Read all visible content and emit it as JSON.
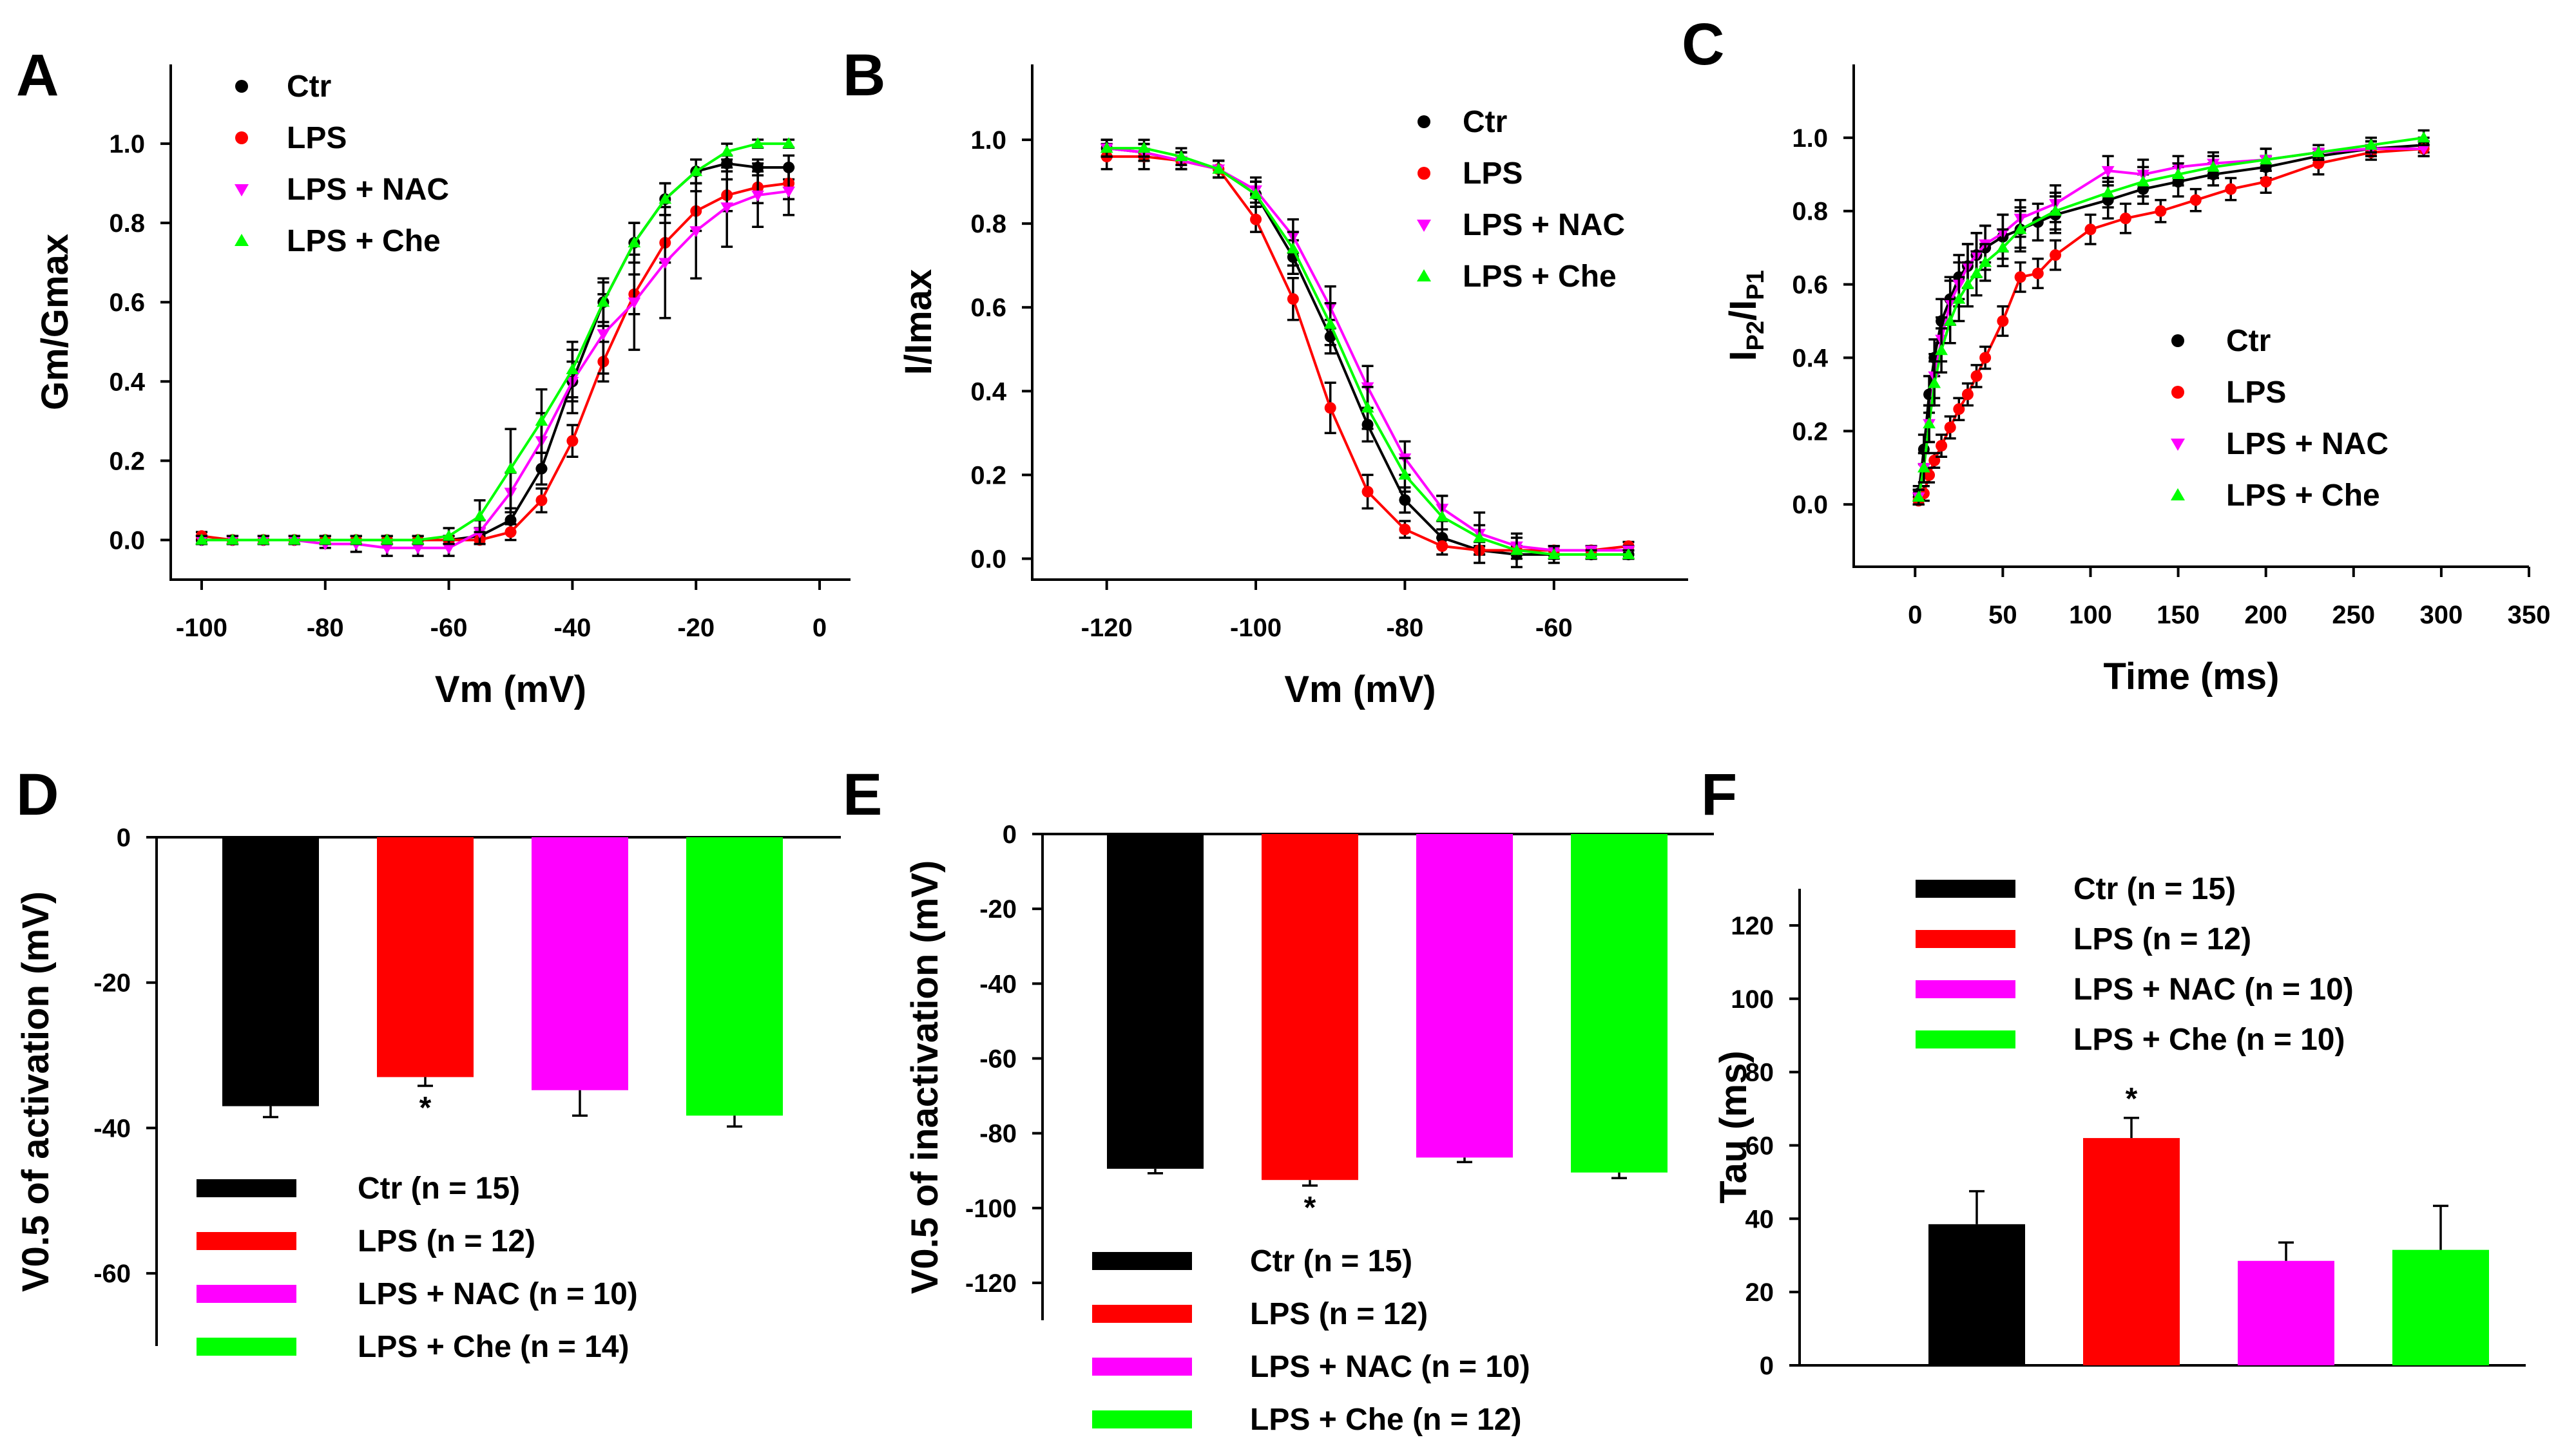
{
  "chart_data": [
    {
      "panel": "A",
      "type": "line",
      "xlabel": "Vm (mV)",
      "ylabel": "Gm/Gmax",
      "xlim": [
        -105,
        5
      ],
      "ylim": [
        -0.1,
        1.2
      ],
      "xticks": [
        -100,
        -80,
        -60,
        -40,
        -20,
        0
      ],
      "yticks": [
        0.0,
        0.2,
        0.4,
        0.6,
        0.8,
        1.0
      ],
      "xtick_labels": [
        "-100",
        "-80",
        "-60",
        "-40",
        "-20",
        "0"
      ],
      "ytick_labels": [
        "0.0",
        "0.2",
        "0.4",
        "0.6",
        "0.8",
        "1.0"
      ],
      "legend_position": "top-left",
      "x": [
        -100,
        -95,
        -90,
        -85,
        -80,
        -75,
        -70,
        -65,
        -60,
        -55,
        -50,
        -45,
        -40,
        -35,
        -30,
        -25,
        -20,
        -15,
        -10,
        -5
      ],
      "series": [
        {
          "name": "Ctr",
          "color": "#000000",
          "marker": "circle",
          "values": [
            0.0,
            0.0,
            0.0,
            0.0,
            0.0,
            0.0,
            0.0,
            0.0,
            0.0,
            0.01,
            0.05,
            0.18,
            0.4,
            0.6,
            0.75,
            0.86,
            0.93,
            0.95,
            0.94,
            0.94
          ],
          "err": [
            0.01,
            0.01,
            0.01,
            0.01,
            0.01,
            0.01,
            0.01,
            0.01,
            0.01,
            0.02,
            0.03,
            0.04,
            0.05,
            0.05,
            0.05,
            0.04,
            0.03,
            0.02,
            0.02,
            0.03
          ]
        },
        {
          "name": "LPS",
          "color": "#ff0000",
          "marker": "circle",
          "values": [
            0.01,
            0.0,
            0.0,
            0.0,
            0.0,
            0.0,
            0.0,
            0.0,
            0.0,
            0.0,
            0.02,
            0.1,
            0.25,
            0.45,
            0.62,
            0.75,
            0.83,
            0.87,
            0.89,
            0.9
          ],
          "err": [
            0.01,
            0.01,
            0.01,
            0.01,
            0.01,
            0.01,
            0.01,
            0.01,
            0.01,
            0.01,
            0.02,
            0.03,
            0.04,
            0.05,
            0.05,
            0.05,
            0.05,
            0.04,
            0.04,
            0.04
          ]
        },
        {
          "name": "LPS + NAC",
          "color": "#ff00ff",
          "marker": "triangle-down",
          "values": [
            0.0,
            0.0,
            0.0,
            0.0,
            -0.01,
            -0.01,
            -0.02,
            -0.02,
            -0.02,
            0.02,
            0.12,
            0.25,
            0.4,
            0.52,
            0.6,
            0.7,
            0.78,
            0.84,
            0.87,
            0.88
          ],
          "err": [
            0.01,
            0.01,
            0.01,
            0.01,
            0.01,
            0.02,
            0.02,
            0.02,
            0.02,
            0.03,
            0.05,
            0.07,
            0.08,
            0.1,
            0.12,
            0.14,
            0.12,
            0.1,
            0.08,
            0.06
          ]
        },
        {
          "name": "LPS + Che",
          "color": "#00ff00",
          "marker": "triangle-up",
          "values": [
            0.0,
            0.0,
            0.0,
            0.0,
            0.0,
            0.0,
            0.0,
            0.0,
            0.01,
            0.06,
            0.18,
            0.3,
            0.43,
            0.6,
            0.75,
            0.86,
            0.93,
            0.98,
            1.0,
            1.0
          ],
          "err": [
            0.01,
            0.01,
            0.01,
            0.01,
            0.01,
            0.01,
            0.01,
            0.01,
            0.02,
            0.04,
            0.1,
            0.08,
            0.07,
            0.06,
            0.05,
            0.04,
            0.03,
            0.02,
            0.01,
            0.01
          ]
        }
      ]
    },
    {
      "panel": "B",
      "type": "line",
      "xlabel": "Vm (mV)",
      "ylabel": "I/Imax",
      "xlim": [
        -130,
        -42
      ],
      "ylim": [
        -0.05,
        1.18
      ],
      "xticks": [
        -120,
        -100,
        -80,
        -60
      ],
      "yticks": [
        0.0,
        0.2,
        0.4,
        0.6,
        0.8,
        1.0
      ],
      "xtick_labels": [
        "-120",
        "-100",
        "-80",
        "-60"
      ],
      "ytick_labels": [
        "0.0",
        "0.2",
        "0.4",
        "0.6",
        "0.8",
        "1.0"
      ],
      "legend_position": "top-right",
      "x": [
        -120,
        -115,
        -110,
        -105,
        -100,
        -95,
        -90,
        -85,
        -80,
        -75,
        -70,
        -65,
        -60,
        -55,
        -50
      ],
      "series": [
        {
          "name": "Ctr",
          "color": "#000000",
          "marker": "circle",
          "values": [
            0.98,
            0.97,
            0.95,
            0.93,
            0.87,
            0.72,
            0.53,
            0.32,
            0.14,
            0.05,
            0.02,
            0.01,
            0.01,
            0.01,
            0.01
          ],
          "err": [
            0.02,
            0.02,
            0.02,
            0.02,
            0.03,
            0.04,
            0.04,
            0.04,
            0.03,
            0.02,
            0.01,
            0.01,
            0.01,
            0.01,
            0.01
          ]
        },
        {
          "name": "LPS",
          "color": "#ff0000",
          "marker": "circle",
          "values": [
            0.96,
            0.96,
            0.95,
            0.93,
            0.81,
            0.62,
            0.36,
            0.16,
            0.07,
            0.03,
            0.02,
            0.02,
            0.02,
            0.02,
            0.03
          ],
          "err": [
            0.03,
            0.03,
            0.02,
            0.02,
            0.03,
            0.05,
            0.06,
            0.04,
            0.02,
            0.02,
            0.01,
            0.01,
            0.01,
            0.01,
            0.01
          ]
        },
        {
          "name": "LPS + NAC",
          "color": "#ff00ff",
          "marker": "triangle-down",
          "values": [
            0.98,
            0.97,
            0.95,
            0.93,
            0.88,
            0.77,
            0.6,
            0.41,
            0.24,
            0.12,
            0.06,
            0.03,
            0.02,
            0.02,
            0.02
          ],
          "err": [
            0.02,
            0.02,
            0.02,
            0.02,
            0.03,
            0.04,
            0.05,
            0.05,
            0.04,
            0.03,
            0.02,
            0.02,
            0.01,
            0.01,
            0.01
          ]
        },
        {
          "name": "LPS + Che",
          "color": "#00ff00",
          "marker": "triangle-up",
          "values": [
            0.98,
            0.98,
            0.96,
            0.93,
            0.87,
            0.74,
            0.56,
            0.36,
            0.2,
            0.1,
            0.05,
            0.02,
            0.01,
            0.01,
            0.01
          ],
          "err": [
            0.02,
            0.02,
            0.02,
            0.02,
            0.03,
            0.04,
            0.05,
            0.05,
            0.04,
            0.05,
            0.06,
            0.04,
            0.02,
            0.01,
            0.01
          ]
        }
      ]
    },
    {
      "panel": "C",
      "type": "line",
      "xlabel": "Time (ms)",
      "ylabel": "IP2/IP1",
      "ylabel_parts": {
        "main": "I",
        "sub1": "P2",
        "slash": "/I",
        "sub2": "P1"
      },
      "xlim": [
        -35,
        350
      ],
      "ylim": [
        -0.17,
        1.2
      ],
      "xticks": [
        0,
        50,
        100,
        150,
        200,
        250,
        300,
        350
      ],
      "yticks": [
        0.0,
        0.2,
        0.4,
        0.6,
        0.8,
        1.0
      ],
      "xtick_labels": [
        "0",
        "50",
        "100",
        "150",
        "200",
        "250",
        "300",
        "350"
      ],
      "ytick_labels": [
        "0.0",
        "0.2",
        "0.4",
        "0.6",
        "0.8",
        "1.0"
      ],
      "legend_position": "center-right",
      "series": [
        {
          "name": "Ctr",
          "color": "#000000",
          "marker": "circle",
          "x": [
            2,
            5,
            8,
            11,
            15,
            20,
            25,
            30,
            35,
            40,
            50,
            60,
            70,
            80,
            110,
            130,
            150,
            170,
            200,
            230,
            260,
            290
          ],
          "values": [
            0.03,
            0.15,
            0.3,
            0.4,
            0.5,
            0.56,
            0.62,
            0.65,
            0.68,
            0.7,
            0.73,
            0.75,
            0.77,
            0.79,
            0.83,
            0.86,
            0.88,
            0.9,
            0.92,
            0.95,
            0.97,
            0.98
          ],
          "err": [
            0.02,
            0.04,
            0.05,
            0.05,
            0.06,
            0.06,
            0.06,
            0.06,
            0.06,
            0.06,
            0.06,
            0.06,
            0.05,
            0.05,
            0.05,
            0.04,
            0.04,
            0.03,
            0.03,
            0.02,
            0.02,
            0.02
          ]
        },
        {
          "name": "LPS",
          "color": "#ff0000",
          "marker": "circle",
          "x": [
            2,
            5,
            8,
            11,
            15,
            20,
            25,
            30,
            35,
            40,
            50,
            60,
            70,
            80,
            100,
            120,
            140,
            160,
            180,
            200,
            230,
            260,
            290
          ],
          "values": [
            0.01,
            0.03,
            0.08,
            0.12,
            0.16,
            0.21,
            0.26,
            0.3,
            0.35,
            0.4,
            0.5,
            0.62,
            0.63,
            0.68,
            0.75,
            0.78,
            0.8,
            0.83,
            0.86,
            0.88,
            0.93,
            0.96,
            0.97
          ],
          "err": [
            0.01,
            0.02,
            0.02,
            0.02,
            0.03,
            0.03,
            0.03,
            0.03,
            0.03,
            0.03,
            0.04,
            0.04,
            0.04,
            0.04,
            0.04,
            0.04,
            0.03,
            0.03,
            0.03,
            0.03,
            0.03,
            0.02,
            0.02
          ]
        },
        {
          "name": "LPS + NAC",
          "color": "#ff00ff",
          "marker": "triangle-down",
          "x": [
            2,
            5,
            8,
            11,
            15,
            20,
            25,
            30,
            35,
            40,
            50,
            60,
            80,
            110,
            130,
            150,
            170,
            200,
            230,
            260,
            290
          ],
          "values": [
            0.02,
            0.1,
            0.22,
            0.35,
            0.45,
            0.55,
            0.6,
            0.65,
            0.68,
            0.71,
            0.74,
            0.78,
            0.82,
            0.91,
            0.9,
            0.92,
            0.93,
            0.94,
            0.96,
            0.97,
            0.97
          ],
          "err": [
            0.02,
            0.04,
            0.05,
            0.06,
            0.06,
            0.06,
            0.06,
            0.06,
            0.06,
            0.05,
            0.05,
            0.05,
            0.05,
            0.04,
            0.04,
            0.03,
            0.03,
            0.03,
            0.02,
            0.02,
            0.02
          ]
        },
        {
          "name": "LPS + Che",
          "color": "#00ff00",
          "marker": "triangle-up",
          "x": [
            2,
            5,
            8,
            11,
            15,
            20,
            25,
            30,
            35,
            40,
            50,
            60,
            80,
            110,
            130,
            150,
            170,
            200,
            230,
            260,
            290
          ],
          "values": [
            0.02,
            0.1,
            0.22,
            0.33,
            0.42,
            0.5,
            0.56,
            0.6,
            0.63,
            0.66,
            0.7,
            0.75,
            0.8,
            0.85,
            0.88,
            0.9,
            0.92,
            0.94,
            0.96,
            0.98,
            1.0
          ],
          "err": [
            0.02,
            0.04,
            0.05,
            0.06,
            0.06,
            0.06,
            0.06,
            0.06,
            0.06,
            0.05,
            0.05,
            0.05,
            0.05,
            0.04,
            0.04,
            0.03,
            0.03,
            0.03,
            0.02,
            0.02,
            0.02
          ]
        }
      ]
    },
    {
      "panel": "D",
      "type": "bar",
      "ylabel": "V0.5 of activation (mV)",
      "ylim": [
        -70,
        0
      ],
      "yticks": [
        0,
        -20,
        -40,
        -60
      ],
      "ytick_labels": [
        "0",
        "-20",
        "-40",
        "-60"
      ],
      "categories": [
        "Ctr (n = 15)",
        "LPS (n = 12)",
        "LPS + NAC (n = 10)",
        "LPS + Che (n = 14)"
      ],
      "values": [
        -37,
        -33,
        -34.8,
        -38.3
      ],
      "err": [
        1.5,
        1.2,
        3.5,
        1.5
      ],
      "colors": [
        "#000000",
        "#ff0000",
        "#ff00ff",
        "#00ff00"
      ],
      "significance": [
        "",
        "*",
        "",
        ""
      ],
      "legend_position": "bottom"
    },
    {
      "panel": "E",
      "type": "bar",
      "ylabel": "V0.5 of inactivation (mV)",
      "ylim": [
        -130,
        0
      ],
      "yticks": [
        0,
        -20,
        -40,
        -60,
        -80,
        -100,
        -120
      ],
      "ytick_labels": [
        "0",
        "-20",
        "-40",
        "-60",
        "-80",
        "-100",
        "-120"
      ],
      "categories": [
        "Ctr (n = 15)",
        "LPS (n = 12)",
        "LPS + NAC (n = 10)",
        "LPS + Che (n = 12)"
      ],
      "values": [
        -89.5,
        -92.5,
        -86.5,
        -90.5
      ],
      "err": [
        1.2,
        1.5,
        1.2,
        1.5
      ],
      "colors": [
        "#000000",
        "#ff0000",
        "#ff00ff",
        "#00ff00"
      ],
      "significance": [
        "",
        "*",
        "",
        ""
      ],
      "legend_position": "bottom"
    },
    {
      "panel": "F",
      "type": "bar",
      "ylabel": "Tau (ms)",
      "ylim": [
        0,
        130
      ],
      "yticks": [
        0,
        20,
        40,
        60,
        80,
        100,
        120
      ],
      "ytick_labels": [
        "0",
        "20",
        "40",
        "60",
        "80",
        "100",
        "120"
      ],
      "categories": [
        "Ctr (n = 15)",
        "LPS (n = 12)",
        "LPS + NAC (n = 10)",
        "LPS + Che (n = 10)"
      ],
      "values": [
        38.5,
        62,
        28.5,
        31.5
      ],
      "err": [
        9,
        5.5,
        5,
        12
      ],
      "colors": [
        "#000000",
        "#ff0000",
        "#ff00ff",
        "#00ff00"
      ],
      "significance": [
        "",
        "*",
        "",
        ""
      ],
      "legend_position": "top-left"
    }
  ]
}
